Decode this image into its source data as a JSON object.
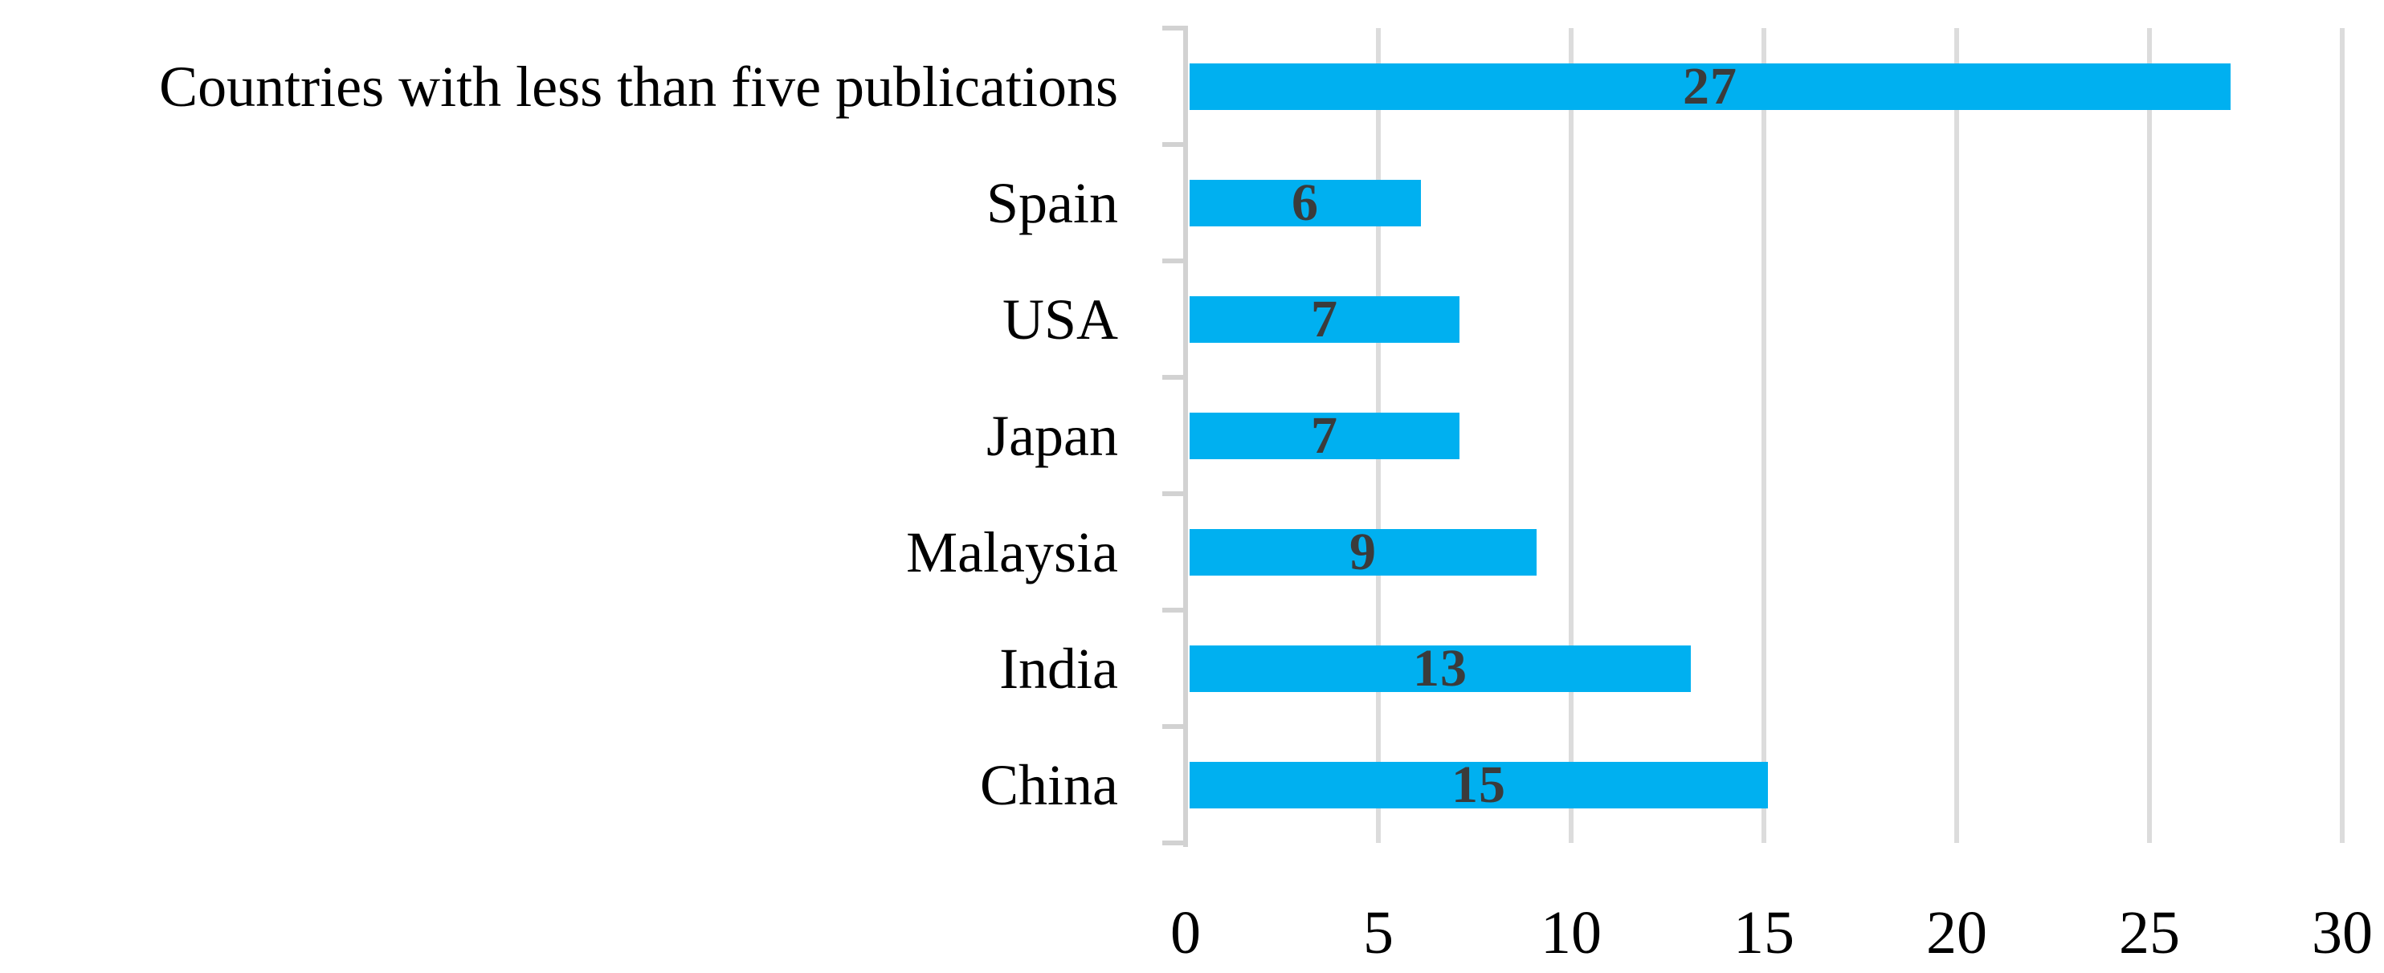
{
  "chart": {
    "background": "#FFFFFF"
  },
  "chart_data": {
    "type": "bar",
    "orientation": "horizontal",
    "title": "",
    "xlabel": "",
    "ylabel": "",
    "categories": [
      "Countries with less than five publications",
      "Spain",
      "USA",
      "Japan",
      "Malaysia",
      "India",
      "China"
    ],
    "values": [
      27,
      6,
      7,
      7,
      9,
      13,
      15
    ],
    "value_labels": [
      "27",
      "6",
      "7",
      "7",
      "9",
      "13",
      "15"
    ],
    "xlim": [
      0,
      30
    ],
    "x_ticks": [
      0,
      5,
      10,
      15,
      20,
      25,
      30
    ],
    "grid": true,
    "legend": false,
    "bar_color": "#00B0F0",
    "value_label_color": "#3B3B3B",
    "category_label_color": "#000000",
    "tick_label_color": "#000000",
    "axis_line_color": "#D2D2D2",
    "gridline_color": "#DCDCDC"
  }
}
